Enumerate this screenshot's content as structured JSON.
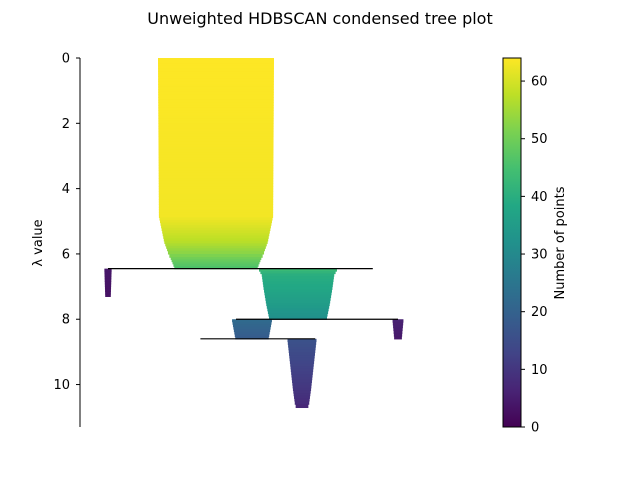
{
  "chart_data": {
    "type": "condensed-tree",
    "title": "Unweighted HDBSCAN condensed tree plot",
    "ylabel": "λ value",
    "ylim": [
      0,
      11.3
    ],
    "y_inverted": true,
    "yticks": [
      0,
      2,
      4,
      6,
      8,
      10
    ],
    "colorbar": {
      "label": "Number of points",
      "range": [
        0,
        64
      ],
      "ticks": [
        0,
        10,
        20,
        30,
        40,
        50,
        60
      ],
      "colormap": "viridis"
    },
    "icicles": [
      {
        "center": 0.34,
        "profile": [
          [
            0,
            64
          ],
          [
            4.8,
            63
          ],
          [
            5.2,
            60
          ],
          [
            5.6,
            57
          ],
          [
            5.9,
            53
          ],
          [
            6.1,
            50
          ],
          [
            6.3,
            47
          ],
          [
            6.45,
            45
          ]
        ]
      },
      {
        "center": 0.07,
        "profile": [
          [
            6.45,
            4
          ],
          [
            7.3,
            3
          ]
        ]
      },
      {
        "center": 0.545,
        "profile": [
          [
            6.45,
            43
          ],
          [
            6.6,
            40
          ],
          [
            7.0,
            38
          ],
          [
            7.5,
            35
          ],
          [
            7.9,
            32
          ],
          [
            8.0,
            30
          ]
        ]
      },
      {
        "center": 0.795,
        "profile": [
          [
            8.0,
            6
          ],
          [
            8.6,
            4
          ]
        ]
      },
      {
        "center": 0.43,
        "profile": [
          [
            8.0,
            22
          ],
          [
            8.3,
            20
          ],
          [
            8.6,
            18
          ]
        ]
      },
      {
        "center": 0.555,
        "profile": [
          [
            8.6,
            16
          ],
          [
            9.1,
            14
          ],
          [
            9.6,
            12
          ],
          [
            10.1,
            10
          ],
          [
            10.5,
            8
          ],
          [
            10.7,
            6
          ]
        ]
      }
    ],
    "splits": [
      {
        "lambda": 6.45,
        "from": 0.07,
        "to": 0.732
      },
      {
        "lambda": 8.0,
        "from": 0.39,
        "to": 0.795
      },
      {
        "lambda": 8.6,
        "from": 0.301,
        "to": 0.588
      }
    ]
  }
}
